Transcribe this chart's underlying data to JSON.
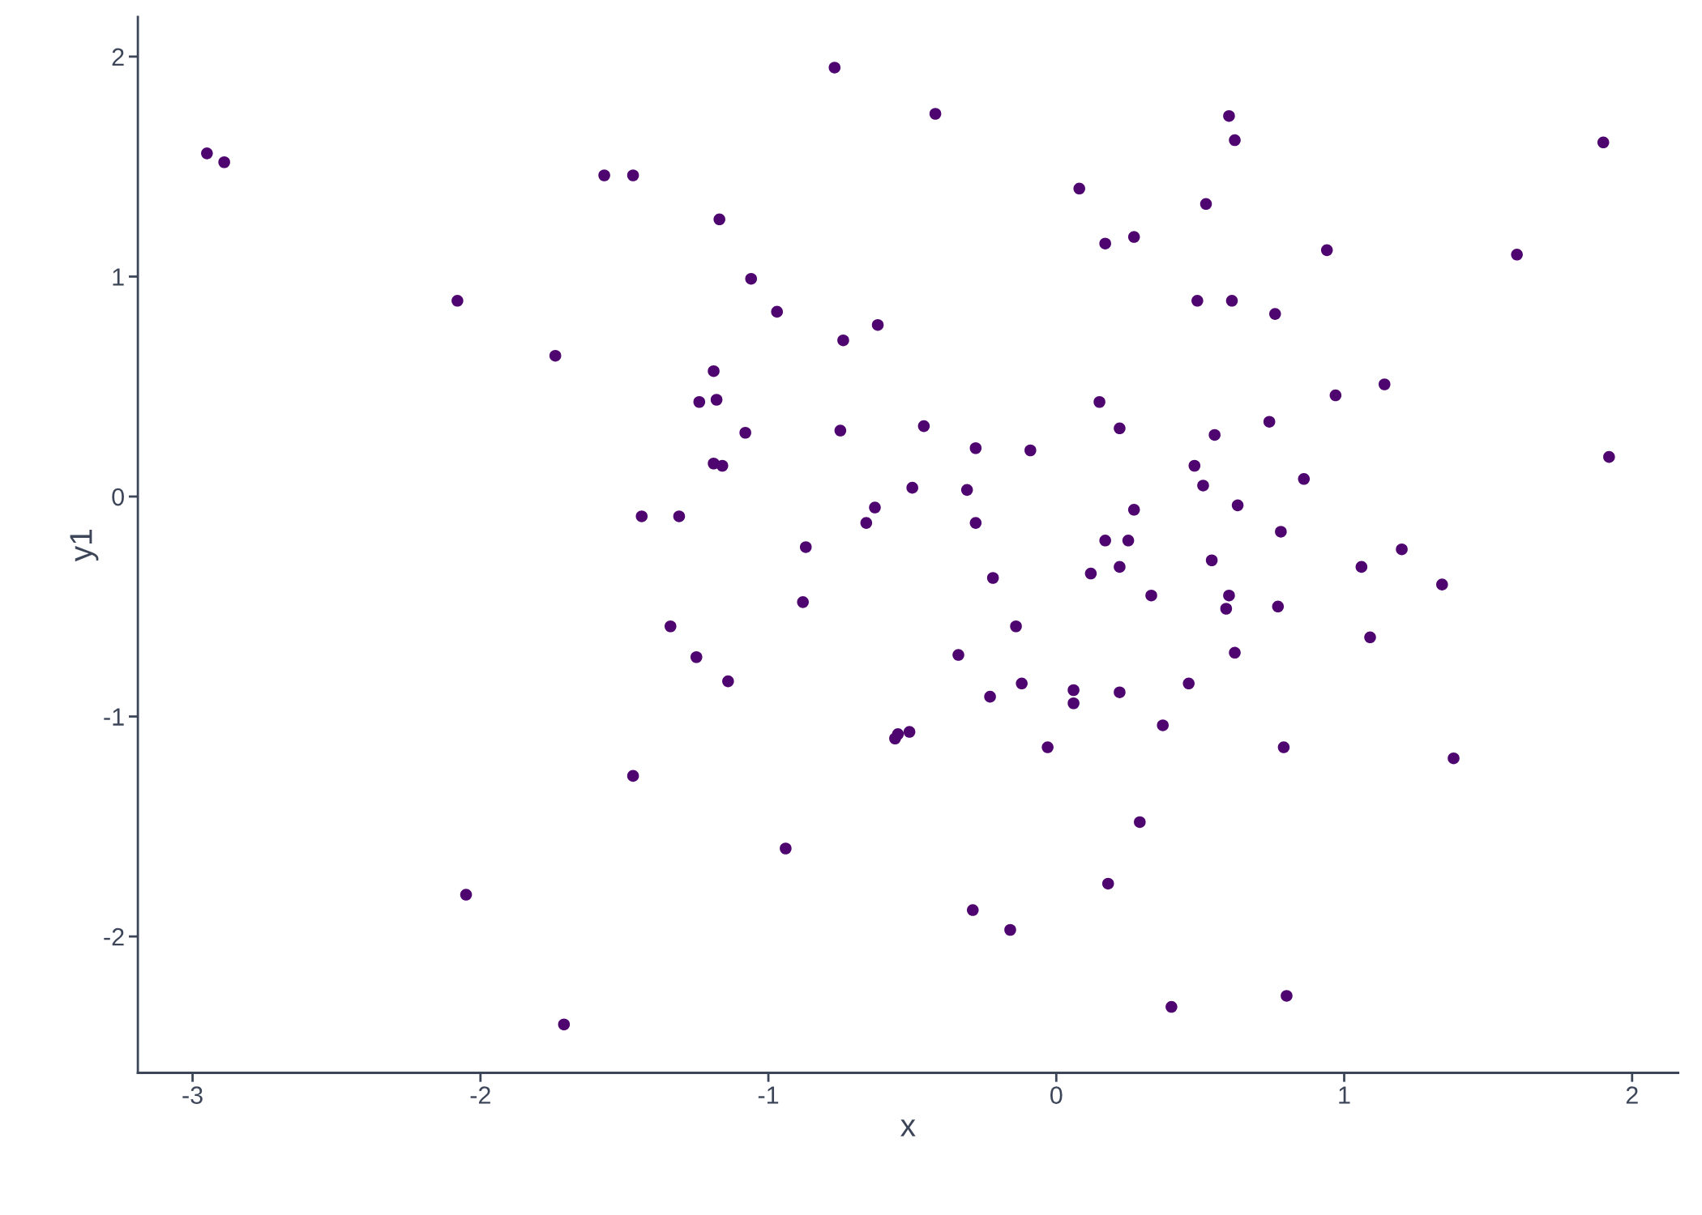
{
  "chart_data": {
    "type": "scatter",
    "xlabel": "x",
    "ylabel": "y1",
    "x": [
      -2.95,
      -2.89,
      -0.77,
      -0.42,
      0.6,
      0.62,
      1.9,
      -1.57,
      -1.47,
      0.08,
      0.52,
      -1.17,
      0.27,
      0.17,
      0.94,
      1.6,
      -2.08,
      -1.06,
      0.49,
      0.61,
      0.76,
      -0.97,
      -0.62,
      -0.74,
      -1.74,
      -1.19,
      1.14,
      0.97,
      -1.24,
      -1.18,
      0.15,
      0.74,
      -0.46,
      -1.08,
      -0.75,
      0.22,
      0.55,
      -0.28,
      -0.09,
      1.92,
      -1.19,
      -1.16,
      0.48,
      0.86,
      -0.5,
      0.51,
      -0.31,
      -0.63,
      0.63,
      0.27,
      -1.44,
      -1.31,
      -0.66,
      -0.28,
      0.78,
      0.17,
      0.25,
      -0.87,
      1.2,
      0.54,
      0.22,
      1.06,
      0.12,
      -0.22,
      1.34,
      0.33,
      0.6,
      -0.88,
      0.59,
      0.77,
      -1.34,
      -0.14,
      1.09,
      -0.34,
      0.62,
      -1.25,
      -1.14,
      -0.12,
      0.46,
      0.06,
      0.22,
      -0.23,
      0.06,
      0.37,
      -0.51,
      -0.55,
      -0.56,
      -0.03,
      0.79,
      1.38,
      -1.47,
      -0.94,
      0.29,
      -2.05,
      0.18,
      -0.29,
      -0.16,
      0.8,
      0.4,
      -1.71
    ],
    "values": [
      1.56,
      1.52,
      1.95,
      1.74,
      1.73,
      1.62,
      1.61,
      1.46,
      1.46,
      1.4,
      1.33,
      1.26,
      1.18,
      1.15,
      1.12,
      1.1,
      0.89,
      0.99,
      0.89,
      0.89,
      0.83,
      0.84,
      0.78,
      0.71,
      0.64,
      0.57,
      0.51,
      0.46,
      0.43,
      0.44,
      0.43,
      0.34,
      0.32,
      0.29,
      0.3,
      0.31,
      0.28,
      0.22,
      0.21,
      0.18,
      0.15,
      0.14,
      0.14,
      0.08,
      0.04,
      0.05,
      0.03,
      -0.05,
      -0.04,
      -0.06,
      -0.09,
      -0.09,
      -0.12,
      -0.12,
      -0.16,
      -0.2,
      -0.2,
      -0.23,
      -0.24,
      -0.29,
      -0.32,
      -0.32,
      -0.35,
      -0.37,
      -0.4,
      -0.45,
      -0.45,
      -0.48,
      -0.51,
      -0.5,
      -0.59,
      -0.59,
      -0.64,
      -0.72,
      -0.71,
      -0.73,
      -0.84,
      -0.85,
      -0.85,
      -0.88,
      -0.89,
      -0.91,
      -0.94,
      -1.04,
      -1.07,
      -1.08,
      -1.1,
      -1.14,
      -1.14,
      -1.19,
      -1.27,
      -1.6,
      -1.48,
      -1.81,
      -1.76,
      -1.88,
      -1.97,
      -2.27,
      -2.32,
      -2.4
    ],
    "color": "#4f0570",
    "marker": "circle",
    "xlim": [
      -3.19,
      2.16
    ],
    "ylim": [
      -2.62,
      2.18
    ],
    "xticks": [
      -3,
      -2,
      -1,
      0,
      1,
      2
    ],
    "yticks": [
      -2,
      -1,
      0,
      1,
      2
    ],
    "grid": false,
    "legend": false
  }
}
